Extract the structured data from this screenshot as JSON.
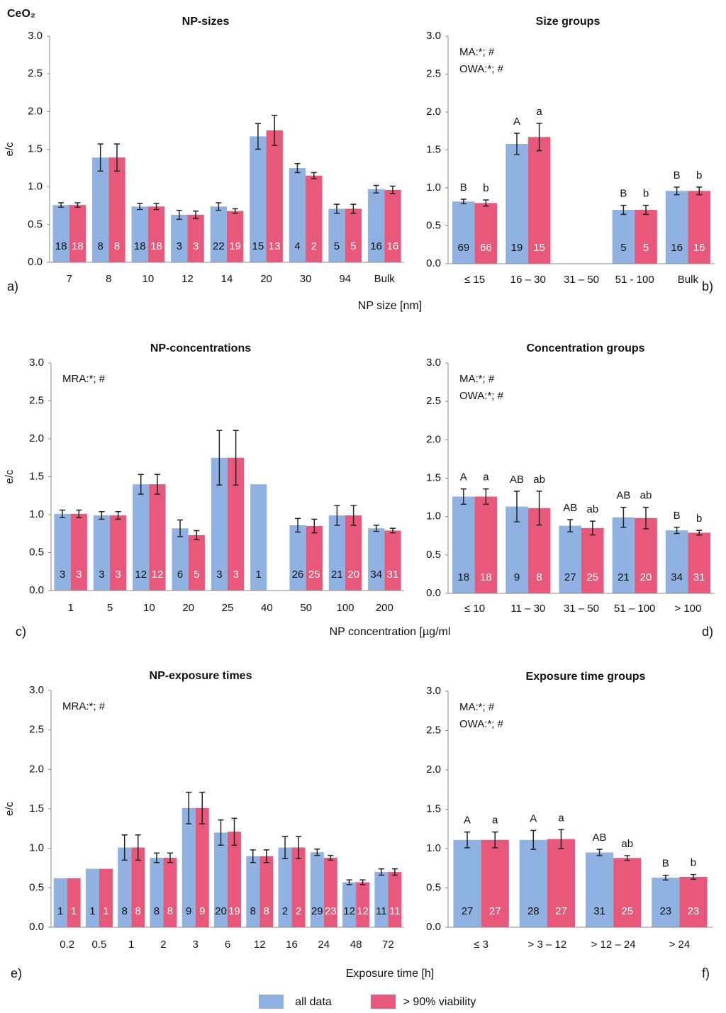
{
  "figure_label": "CeO₂",
  "legend": [
    {
      "name": "all data",
      "color": "#8fb2e3"
    },
    {
      "name": "> 90% viability",
      "color": "#e8587b"
    }
  ],
  "captions": [
    {
      "left": "a)",
      "xlabel": "NP size [nm]",
      "right": "b)"
    },
    {
      "left": "c)",
      "xlabel": "NP concentration [µg/ml",
      "right": "d)"
    },
    {
      "left": "e)",
      "xlabel": "Exposure time [h]",
      "right": "f)"
    }
  ],
  "chart_data": [
    {
      "type": "bar",
      "title": "NP-sizes",
      "ylabel": "e/c",
      "ylim": [
        0,
        3
      ],
      "yticks": [
        {
          "value": 0,
          "label": "0.0"
        },
        0.5,
        {
          "value": 1,
          "label": "1.0"
        },
        1.5,
        {
          "value": 2,
          "label": "2.0"
        },
        2.5,
        {
          "value": 3,
          "label": "3.0"
        }
      ],
      "categories": [
        "7",
        "8",
        "10",
        "12",
        "14",
        "20",
        "30",
        "94",
        "Bulk"
      ],
      "series": [
        {
          "color": "#8fb2e3",
          "values": [
            0.76,
            1.39,
            0.74,
            0.63,
            0.74,
            1.67,
            1.25,
            0.71,
            0.97
          ],
          "errors": [
            0.03,
            0.18,
            0.04,
            0.06,
            0.05,
            0.17,
            0.06,
            0.06,
            0.05
          ],
          "n": [
            18,
            8,
            18,
            3,
            22,
            15,
            4,
            5,
            16
          ]
        },
        {
          "color": "#e8587b",
          "values": [
            0.76,
            1.39,
            0.74,
            0.63,
            0.68,
            1.75,
            1.15,
            0.71,
            0.96
          ],
          "errors": [
            0.03,
            0.18,
            0.04,
            0.05,
            0.03,
            0.2,
            0.04,
            0.06,
            0.05
          ],
          "n": [
            18,
            8,
            18,
            3,
            19,
            13,
            2,
            5,
            16
          ]
        }
      ]
    },
    {
      "type": "bar",
      "title": "Size groups",
      "ylim": [
        0,
        3
      ],
      "yticks": [
        {
          "value": 0,
          "label": "0.0"
        },
        0.5,
        {
          "value": 1,
          "label": "1.0"
        },
        1.5,
        {
          "value": 2,
          "label": "2.0"
        },
        2.5,
        {
          "value": 3,
          "label": "3.0"
        }
      ],
      "annotations": [
        "MA:*; #",
        "OWA:*; #"
      ],
      "categories": [
        "≤ 15",
        "16 – 30",
        "31 – 50",
        "51 - 100",
        "Bulk"
      ],
      "series": [
        {
          "color": "#8fb2e3",
          "values": [
            0.82,
            1.58,
            null,
            0.71,
            0.96
          ],
          "errors": [
            0.03,
            0.14,
            null,
            0.06,
            0.05
          ],
          "n": [
            69,
            19,
            null,
            5,
            16
          ],
          "letters": [
            "B",
            "A",
            null,
            "B",
            "B"
          ]
        },
        {
          "color": "#e8587b",
          "values": [
            0.8,
            1.67,
            null,
            0.71,
            0.96
          ],
          "errors": [
            0.04,
            0.18,
            null,
            0.06,
            0.05
          ],
          "n": [
            66,
            15,
            null,
            5,
            16
          ],
          "letters": [
            "b",
            "a",
            null,
            "b",
            "b"
          ]
        }
      ]
    },
    {
      "type": "bar",
      "title": "NP-concentrations",
      "ylabel": "e/c",
      "ylim": [
        0,
        3
      ],
      "yticks": [
        {
          "value": 0,
          "label": "0.0"
        },
        0.5,
        {
          "value": 1,
          "label": "1.0"
        },
        1.5,
        {
          "value": 2,
          "label": "2.0"
        },
        2.5,
        {
          "value": 3,
          "label": "3.0"
        }
      ],
      "annotations": [
        "MRA:*; #"
      ],
      "categories": [
        "1",
        "5",
        "10",
        "20",
        "25",
        "40",
        "50",
        "100",
        "200"
      ],
      "series": [
        {
          "color": "#8fb2e3",
          "values": [
            1.01,
            0.99,
            1.4,
            0.82,
            1.75,
            1.4,
            0.86,
            0.99,
            0.82
          ],
          "errors": [
            0.05,
            0.05,
            0.13,
            0.11,
            0.36,
            null,
            0.09,
            0.13,
            0.04
          ],
          "n": [
            3,
            3,
            12,
            6,
            3,
            1,
            26,
            21,
            34
          ]
        },
        {
          "color": "#e8587b",
          "values": [
            1.01,
            0.99,
            1.4,
            0.73,
            1.75,
            null,
            0.85,
            0.99,
            0.79
          ],
          "errors": [
            0.05,
            0.05,
            0.13,
            0.06,
            0.36,
            null,
            0.09,
            0.13,
            0.03
          ],
          "n": [
            3,
            3,
            12,
            5,
            3,
            null,
            25,
            20,
            31
          ]
        }
      ]
    },
    {
      "type": "bar",
      "title": "Concentration groups",
      "ylim": [
        0,
        3
      ],
      "yticks": [
        {
          "value": 0,
          "label": "0.0"
        },
        0.5,
        {
          "value": 1,
          "label": "1.0"
        },
        1.5,
        {
          "value": 2,
          "label": "2.0"
        },
        2.5,
        {
          "value": 3,
          "label": "3.0"
        }
      ],
      "annotations": [
        "MA:*; #",
        "OWA:*; #"
      ],
      "categories": [
        "≤ 10",
        "11 – 30",
        "31 – 50",
        "51 – 100",
        "> 100"
      ],
      "series": [
        {
          "color": "#8fb2e3",
          "values": [
            1.26,
            1.13,
            0.88,
            0.99,
            0.82
          ],
          "errors": [
            0.1,
            0.2,
            0.08,
            0.13,
            0.04
          ],
          "n": [
            18,
            9,
            27,
            21,
            34
          ],
          "letters": [
            "A",
            "AB",
            "AB",
            "AB",
            "B"
          ]
        },
        {
          "color": "#e8587b",
          "values": [
            1.26,
            1.11,
            0.85,
            0.98,
            0.79
          ],
          "errors": [
            0.1,
            0.22,
            0.09,
            0.14,
            0.03
          ],
          "n": [
            18,
            8,
            25,
            20,
            31
          ],
          "letters": [
            "a",
            "ab",
            "ab",
            "ab",
            "b"
          ]
        }
      ]
    },
    {
      "type": "bar",
      "title": "NP-exposure times",
      "ylabel": "e/c",
      "ylim": [
        0,
        3
      ],
      "yticks": [
        {
          "value": 0,
          "label": "0.0"
        },
        0.5,
        {
          "value": 1,
          "label": "1.0"
        },
        1.5,
        {
          "value": 2,
          "label": "2.0"
        },
        2.5,
        {
          "value": 3,
          "label": "3.0"
        }
      ],
      "annotations": [
        "MRA:*; #"
      ],
      "categories": [
        "0.2",
        "0.5",
        "1",
        "2",
        "3",
        "6",
        "12",
        "16",
        "24",
        "48",
        "72"
      ],
      "series": [
        {
          "color": "#8fb2e3",
          "values": [
            0.62,
            0.74,
            1.01,
            0.88,
            1.51,
            1.2,
            0.9,
            1.01,
            0.95,
            0.57,
            0.7
          ],
          "errors": [
            null,
            null,
            0.16,
            0.06,
            0.2,
            0.16,
            0.08,
            0.14,
            0.04,
            0.03,
            0.04
          ],
          "n": [
            1,
            1,
            8,
            8,
            9,
            20,
            8,
            2,
            29,
            12,
            11
          ]
        },
        {
          "color": "#e8587b",
          "values": [
            0.62,
            0.74,
            1.01,
            0.88,
            1.51,
            1.21,
            0.9,
            1.01,
            0.88,
            0.57,
            0.7
          ],
          "errors": [
            null,
            null,
            0.16,
            0.06,
            0.2,
            0.17,
            0.08,
            0.14,
            0.03,
            0.03,
            0.04
          ],
          "n": [
            1,
            1,
            8,
            8,
            9,
            19,
            8,
            2,
            23,
            12,
            11
          ]
        }
      ]
    },
    {
      "type": "bar",
      "title": "Exposure time groups",
      "ylim": [
        0,
        3
      ],
      "yticks": [
        {
          "value": 0,
          "label": "0.0"
        },
        0.5,
        {
          "value": 1,
          "label": "1.0"
        },
        1.5,
        {
          "value": 2,
          "label": "2.0"
        },
        2.5,
        {
          "value": 3,
          "label": "3.0"
        }
      ],
      "annotations": [
        "MA:*; #",
        "OWA:*; #"
      ],
      "categories": [
        "≤ 3",
        "> 3 – 12",
        "> 12 – 24",
        "> 24"
      ],
      "series": [
        {
          "color": "#8fb2e3",
          "values": [
            1.11,
            1.11,
            0.95,
            0.63
          ],
          "errors": [
            0.1,
            0.12,
            0.04,
            0.03
          ],
          "n": [
            27,
            28,
            31,
            23
          ],
          "letters": [
            "A",
            "A",
            "AB",
            "B"
          ]
        },
        {
          "color": "#e8587b",
          "values": [
            1.11,
            1.12,
            0.88,
            0.64
          ],
          "errors": [
            0.1,
            0.12,
            0.03,
            0.03
          ],
          "n": [
            27,
            27,
            25,
            23
          ],
          "letters": [
            "a",
            "a",
            "ab",
            "b"
          ]
        }
      ]
    }
  ]
}
